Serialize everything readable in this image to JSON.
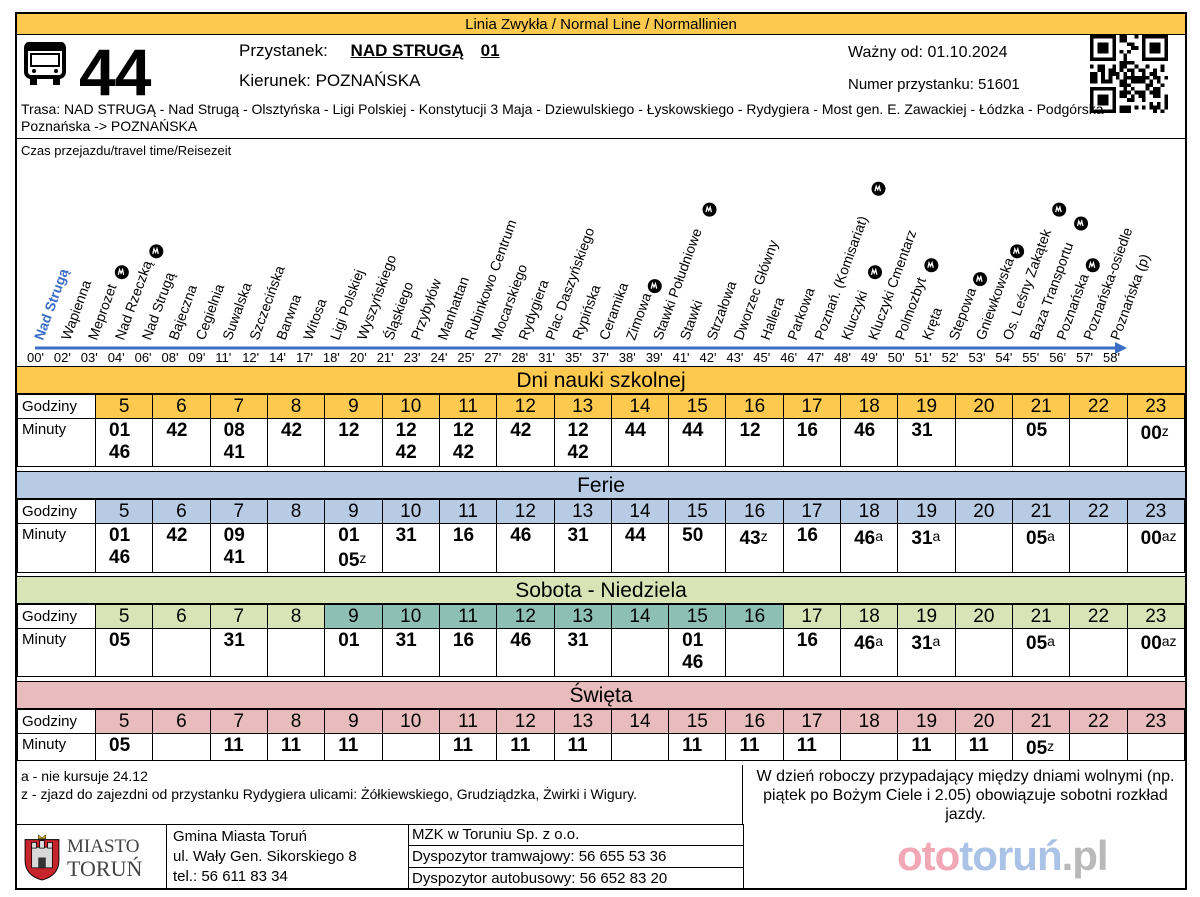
{
  "header": {
    "line_type": "Linia Zwykła  / Normal Line /  Normallinien",
    "line_number": "44",
    "stop_label": "Przystanek:",
    "stop_name": "NAD STRUGĄ",
    "stop_code": "01",
    "direction_label": "Kierunek:",
    "direction": "POZNAŃSKA",
    "valid_from": "Ważny od: 01.10.2024",
    "stop_number": "Numer przystanku: 51601",
    "route": "Trasa: NAD STRUGĄ - Nad Strugą - Olsztyńska - Ligi Polskiej - Konstytucji 3 Maja - Dziewulskiego - Łyskowskiego - Rydygiera - Most gen. E. Zawackiej - Łódzka - Podgórska - Poznańska -> POZNAŃSKA"
  },
  "travel": {
    "label": "Czas przejazdu/travel time/Reisezeit",
    "on_demand_icon_name": "na-zadanie-icon",
    "stops": [
      {
        "name": "Nad Strugą",
        "minute": "00'",
        "on_demand": false
      },
      {
        "name": "Wapienna",
        "minute": "02'",
        "on_demand": false
      },
      {
        "name": "Meprozet",
        "minute": "03'",
        "on_demand": true
      },
      {
        "name": "Nad Rzeczką",
        "minute": "04'",
        "on_demand": true
      },
      {
        "name": "Nad Strugą",
        "minute": "06'",
        "on_demand": false
      },
      {
        "name": "Bajeczna",
        "minute": "08'",
        "on_demand": false
      },
      {
        "name": "Cegielnia",
        "minute": "09'",
        "on_demand": false
      },
      {
        "name": "Suwalska",
        "minute": "11'",
        "on_demand": false
      },
      {
        "name": "Szczecińska",
        "minute": "12'",
        "on_demand": false
      },
      {
        "name": "Barwna",
        "minute": "14'",
        "on_demand": false
      },
      {
        "name": "Witosa",
        "minute": "17'",
        "on_demand": false
      },
      {
        "name": "Ligi Polskiej",
        "minute": "18'",
        "on_demand": false
      },
      {
        "name": "Wyszyńskiego",
        "minute": "20'",
        "on_demand": false
      },
      {
        "name": "Śląskiego",
        "minute": "21'",
        "on_demand": false
      },
      {
        "name": "Przybyłów",
        "minute": "23'",
        "on_demand": false
      },
      {
        "name": "Manhattan",
        "minute": "24'",
        "on_demand": false
      },
      {
        "name": "Rubinkowo Centrum",
        "minute": "25'",
        "on_demand": false
      },
      {
        "name": "Mocarskiego",
        "minute": "27'",
        "on_demand": false
      },
      {
        "name": "Rydygiera",
        "minute": "28'",
        "on_demand": false
      },
      {
        "name": "Plac Daszyńskiego",
        "minute": "31'",
        "on_demand": false
      },
      {
        "name": "Rypińska",
        "minute": "35'",
        "on_demand": false
      },
      {
        "name": "Ceramika",
        "minute": "37'",
        "on_demand": false
      },
      {
        "name": "Zimowa",
        "minute": "38'",
        "on_demand": true
      },
      {
        "name": "Stawki Południowe",
        "minute": "39'",
        "on_demand": true
      },
      {
        "name": "Stawki",
        "minute": "41'",
        "on_demand": false
      },
      {
        "name": "Strzałowa",
        "minute": "42'",
        "on_demand": false
      },
      {
        "name": "Dworzec Główny",
        "minute": "43'",
        "on_demand": false
      },
      {
        "name": "Hallera",
        "minute": "45'",
        "on_demand": false
      },
      {
        "name": "Parkowa",
        "minute": "46'",
        "on_demand": false
      },
      {
        "name": "Poznań. (Komisariat)",
        "minute": "47'",
        "on_demand": true
      },
      {
        "name": "Kluczyki",
        "minute": "48'",
        "on_demand": true
      },
      {
        "name": "Kluczyki Cmentarz",
        "minute": "49'",
        "on_demand": false
      },
      {
        "name": "Polmozbyt",
        "minute": "50'",
        "on_demand": true
      },
      {
        "name": "Kręta",
        "minute": "51'",
        "on_demand": false
      },
      {
        "name": "Stepowa",
        "minute": "52'",
        "on_demand": true
      },
      {
        "name": "Gniewkowska",
        "minute": "53'",
        "on_demand": true
      },
      {
        "name": "Os. Leśny Zakątek",
        "minute": "54'",
        "on_demand": true
      },
      {
        "name": "Baza Transportu",
        "minute": "55'",
        "on_demand": true
      },
      {
        "name": "Poznańska",
        "minute": "56'",
        "on_demand": true
      },
      {
        "name": "Poznańska-osiedle",
        "minute": "57'",
        "on_demand": false
      },
      {
        "name": "Poznańska (p)",
        "minute": "58'",
        "on_demand": false
      }
    ]
  },
  "schedules": [
    {
      "title": "Dni nauki szkolnej",
      "title_color": "#fdc94e",
      "hours_label": "Godziny",
      "minutes_label": "Minuty",
      "hours": [
        {
          "h": "5",
          "bg": "#fdc94e"
        },
        {
          "h": "6",
          "bg": "#fdc94e"
        },
        {
          "h": "7",
          "bg": "#fdc94e"
        },
        {
          "h": "8",
          "bg": "#fdc94e"
        },
        {
          "h": "9",
          "bg": "#fdc94e"
        },
        {
          "h": "10",
          "bg": "#fdc94e"
        },
        {
          "h": "11",
          "bg": "#fdc94e"
        },
        {
          "h": "12",
          "bg": "#fdc94e"
        },
        {
          "h": "13",
          "bg": "#fdc94e"
        },
        {
          "h": "14",
          "bg": "#fdc94e"
        },
        {
          "h": "15",
          "bg": "#fdc94e"
        },
        {
          "h": "16",
          "bg": "#fdc94e"
        },
        {
          "h": "17",
          "bg": "#fdc94e"
        },
        {
          "h": "18",
          "bg": "#fdc94e"
        },
        {
          "h": "19",
          "bg": "#fdc94e"
        },
        {
          "h": "20",
          "bg": "#fdc94e"
        },
        {
          "h": "21",
          "bg": "#fdc94e"
        },
        {
          "h": "22",
          "bg": "#fdc94e"
        },
        {
          "h": "23",
          "bg": "#fdc94e"
        }
      ],
      "minutes": [
        [
          {
            "m": "01",
            "mark": ""
          },
          {
            "m": "46",
            "mark": ""
          }
        ],
        [
          {
            "m": "42",
            "mark": ""
          }
        ],
        [
          {
            "m": "08",
            "mark": ""
          },
          {
            "m": "41",
            "mark": ""
          }
        ],
        [
          {
            "m": "42",
            "mark": ""
          }
        ],
        [
          {
            "m": "12",
            "mark": ""
          }
        ],
        [
          {
            "m": "12",
            "mark": ""
          },
          {
            "m": "42",
            "mark": ""
          }
        ],
        [
          {
            "m": "12",
            "mark": ""
          },
          {
            "m": "42",
            "mark": ""
          }
        ],
        [
          {
            "m": "42",
            "mark": ""
          }
        ],
        [
          {
            "m": "12",
            "mark": ""
          },
          {
            "m": "42",
            "mark": ""
          }
        ],
        [
          {
            "m": "44",
            "mark": ""
          }
        ],
        [
          {
            "m": "44",
            "mark": ""
          }
        ],
        [
          {
            "m": "12",
            "mark": ""
          }
        ],
        [
          {
            "m": "16",
            "mark": ""
          }
        ],
        [
          {
            "m": "46",
            "mark": ""
          }
        ],
        [
          {
            "m": "31",
            "mark": ""
          }
        ],
        [],
        [
          {
            "m": "05",
            "mark": ""
          }
        ],
        [],
        [
          {
            "m": "00",
            "mark": "z"
          }
        ]
      ]
    },
    {
      "title": "Ferie",
      "title_color": "#b7cce4",
      "hours_label": "Godziny",
      "minutes_label": "Minuty",
      "hours": [
        {
          "h": "5",
          "bg": "#b7cce4"
        },
        {
          "h": "6",
          "bg": "#b7cce4"
        },
        {
          "h": "7",
          "bg": "#b7cce4"
        },
        {
          "h": "8",
          "bg": "#b7cce4"
        },
        {
          "h": "9",
          "bg": "#b7cce4"
        },
        {
          "h": "10",
          "bg": "#b7cce4"
        },
        {
          "h": "11",
          "bg": "#b7cce4"
        },
        {
          "h": "12",
          "bg": "#b7cce4"
        },
        {
          "h": "13",
          "bg": "#b7cce4"
        },
        {
          "h": "14",
          "bg": "#b7cce4"
        },
        {
          "h": "15",
          "bg": "#b7cce4"
        },
        {
          "h": "16",
          "bg": "#b7cce4"
        },
        {
          "h": "17",
          "bg": "#b7cce4"
        },
        {
          "h": "18",
          "bg": "#b7cce4"
        },
        {
          "h": "19",
          "bg": "#b7cce4"
        },
        {
          "h": "20",
          "bg": "#b7cce4"
        },
        {
          "h": "21",
          "bg": "#b7cce4"
        },
        {
          "h": "22",
          "bg": "#b7cce4"
        },
        {
          "h": "23",
          "bg": "#b7cce4"
        }
      ],
      "minutes": [
        [
          {
            "m": "01",
            "mark": ""
          },
          {
            "m": "46",
            "mark": ""
          }
        ],
        [
          {
            "m": "42",
            "mark": ""
          }
        ],
        [
          {
            "m": "09",
            "mark": ""
          },
          {
            "m": "41",
            "mark": ""
          }
        ],
        [],
        [
          {
            "m": "01",
            "mark": ""
          },
          {
            "m": "05",
            "mark": "z"
          }
        ],
        [
          {
            "m": "31",
            "mark": ""
          }
        ],
        [
          {
            "m": "16",
            "mark": ""
          }
        ],
        [
          {
            "m": "46",
            "mark": ""
          }
        ],
        [
          {
            "m": "31",
            "mark": ""
          }
        ],
        [
          {
            "m": "44",
            "mark": ""
          }
        ],
        [
          {
            "m": "50",
            "mark": ""
          }
        ],
        [
          {
            "m": "43",
            "mark": "z"
          }
        ],
        [
          {
            "m": "16",
            "mark": ""
          }
        ],
        [
          {
            "m": "46",
            "mark": "a"
          }
        ],
        [
          {
            "m": "31",
            "mark": "a"
          }
        ],
        [],
        [
          {
            "m": "05",
            "mark": "a"
          }
        ],
        [],
        [
          {
            "m": "00",
            "mark": "az"
          }
        ]
      ]
    },
    {
      "title": "Sobota - Niedziela",
      "title_color": "#d8e3b6",
      "hours_label": "Godziny",
      "minutes_label": "Minuty",
      "hours": [
        {
          "h": "5",
          "bg": "#d8e3b6"
        },
        {
          "h": "6",
          "bg": "#d8e3b6"
        },
        {
          "h": "7",
          "bg": "#d8e3b6"
        },
        {
          "h": "8",
          "bg": "#d8e3b6"
        },
        {
          "h": "9",
          "bg": "#8ebfb5"
        },
        {
          "h": "10",
          "bg": "#8ebfb5"
        },
        {
          "h": "11",
          "bg": "#8ebfb5"
        },
        {
          "h": "12",
          "bg": "#8ebfb5"
        },
        {
          "h": "13",
          "bg": "#8ebfb5"
        },
        {
          "h": "14",
          "bg": "#8ebfb5"
        },
        {
          "h": "15",
          "bg": "#8ebfb5"
        },
        {
          "h": "16",
          "bg": "#8ebfb5"
        },
        {
          "h": "17",
          "bg": "#d8e3b6"
        },
        {
          "h": "18",
          "bg": "#d8e3b6"
        },
        {
          "h": "19",
          "bg": "#d8e3b6"
        },
        {
          "h": "20",
          "bg": "#d8e3b6"
        },
        {
          "h": "21",
          "bg": "#d8e3b6"
        },
        {
          "h": "22",
          "bg": "#d8e3b6"
        },
        {
          "h": "23",
          "bg": "#d8e3b6"
        }
      ],
      "minutes": [
        [
          {
            "m": "05",
            "mark": ""
          }
        ],
        [],
        [
          {
            "m": "31",
            "mark": ""
          }
        ],
        [],
        [
          {
            "m": "01",
            "mark": ""
          }
        ],
        [
          {
            "m": "31",
            "mark": ""
          }
        ],
        [
          {
            "m": "16",
            "mark": ""
          }
        ],
        [
          {
            "m": "46",
            "mark": ""
          }
        ],
        [
          {
            "m": "31",
            "mark": ""
          }
        ],
        [],
        [
          {
            "m": "01",
            "mark": ""
          },
          {
            "m": "46",
            "mark": ""
          }
        ],
        [],
        [
          {
            "m": "16",
            "mark": ""
          }
        ],
        [
          {
            "m": "46",
            "mark": "a"
          }
        ],
        [
          {
            "m": "31",
            "mark": "a"
          }
        ],
        [],
        [
          {
            "m": "05",
            "mark": "a"
          }
        ],
        [],
        [
          {
            "m": "00",
            "mark": "az"
          }
        ]
      ]
    },
    {
      "title": "Święta",
      "title_color": "#e8bcbc",
      "hours_label": "Godziny",
      "minutes_label": "Minuty",
      "hours": [
        {
          "h": "5",
          "bg": "#e8bcbc"
        },
        {
          "h": "6",
          "bg": "#e8bcbc"
        },
        {
          "h": "7",
          "bg": "#e8bcbc"
        },
        {
          "h": "8",
          "bg": "#e8bcbc"
        },
        {
          "h": "9",
          "bg": "#e8bcbc"
        },
        {
          "h": "10",
          "bg": "#e8bcbc"
        },
        {
          "h": "11",
          "bg": "#e8bcbc"
        },
        {
          "h": "12",
          "bg": "#e8bcbc"
        },
        {
          "h": "13",
          "bg": "#e8bcbc"
        },
        {
          "h": "14",
          "bg": "#e8bcbc"
        },
        {
          "h": "15",
          "bg": "#e8bcbc"
        },
        {
          "h": "16",
          "bg": "#e8bcbc"
        },
        {
          "h": "17",
          "bg": "#e8bcbc"
        },
        {
          "h": "18",
          "bg": "#e8bcbc"
        },
        {
          "h": "19",
          "bg": "#e8bcbc"
        },
        {
          "h": "20",
          "bg": "#e8bcbc"
        },
        {
          "h": "21",
          "bg": "#e8bcbc"
        },
        {
          "h": "22",
          "bg": "#e8bcbc"
        },
        {
          "h": "23",
          "bg": "#e8bcbc"
        }
      ],
      "minutes": [
        [
          {
            "m": "05",
            "mark": ""
          }
        ],
        [],
        [
          {
            "m": "11",
            "mark": ""
          }
        ],
        [
          {
            "m": "11",
            "mark": ""
          }
        ],
        [
          {
            "m": "11",
            "mark": ""
          }
        ],
        [],
        [
          {
            "m": "11",
            "mark": ""
          }
        ],
        [
          {
            "m": "11",
            "mark": ""
          }
        ],
        [
          {
            "m": "11",
            "mark": ""
          }
        ],
        [],
        [
          {
            "m": "11",
            "mark": ""
          }
        ],
        [
          {
            "m": "11",
            "mark": ""
          }
        ],
        [
          {
            "m": "11",
            "mark": ""
          }
        ],
        [],
        [
          {
            "m": "11",
            "mark": ""
          }
        ],
        [
          {
            "m": "11",
            "mark": ""
          }
        ],
        [
          {
            "m": "05",
            "mark": "z"
          }
        ],
        [],
        []
      ]
    }
  ],
  "footer": {
    "note_a": "a - nie kursuje 24.12",
    "note_z": "z - zjazd do zajezdni od przystanku Rydygiera ulicami: Żółkiewskiego, Grudziądzka, Żwirki i Wigury.",
    "notice": "W dzień roboczy przypadający między dniami wolnymi (np. piątek po Bożym Ciele i 2.05) obowiązuje sobotni rozkład jazdy.",
    "city_name_1": "MIASTO",
    "city_name_2": "TORUŃ",
    "gmina_name": "Gmina Miasta Toruń",
    "gmina_address": "ul. Wały Gen. Sikorskiego 8",
    "gmina_phone": "tel.: 56 611 83 34",
    "mzk_name": "MZK w Toruniu Sp. z o.o.",
    "tram_dispatcher": "Dyspozytor tramwajowy: 56 655 53 36",
    "bus_dispatcher": "Dyspozytor autobusowy: 56 652 83 20",
    "watermark_a": "oto",
    "watermark_b": "toruń",
    "watermark_c": ".pl",
    "watermark_colors": [
      "#f2a7b6",
      "#a9c2e6",
      "#b9b9b9"
    ]
  },
  "colors": {
    "arrow": "#3b6fc6",
    "first_stop": "#3b6fc6",
    "line_band": "#fdc94e"
  }
}
